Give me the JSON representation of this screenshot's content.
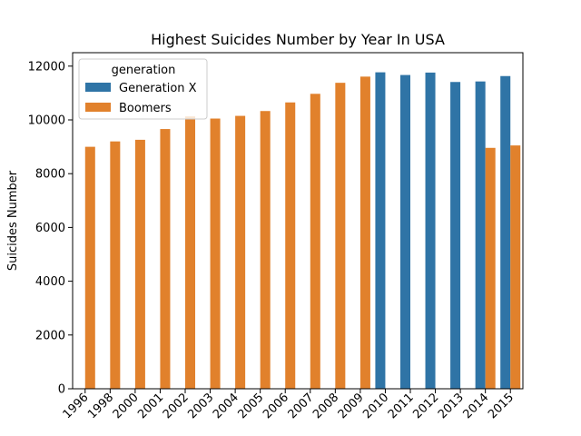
{
  "chart_data": {
    "type": "bar",
    "title": "Highest Suicides Number by Year In USA",
    "xlabel": "",
    "ylabel": "Suicides Number",
    "ylim": [
      0,
      12500
    ],
    "yticks": [
      0,
      2000,
      4000,
      6000,
      8000,
      10000,
      12000
    ],
    "grid": false,
    "legend": {
      "title": "generation",
      "placement": "top-left"
    },
    "categories": [
      "1996",
      "1998",
      "2000",
      "2001",
      "2002",
      "2003",
      "2004",
      "2005",
      "2006",
      "2007",
      "2008",
      "2009",
      "2010",
      "2011",
      "2012",
      "2013",
      "2014",
      "2015"
    ],
    "series": [
      {
        "name": "Generation X",
        "color": "#2f74a6",
        "values": [
          null,
          null,
          null,
          null,
          null,
          null,
          null,
          null,
          null,
          null,
          null,
          null,
          11770,
          11670,
          11760,
          11410,
          11430,
          11630
        ]
      },
      {
        "name": "Boomers",
        "color": "#e1812c",
        "values": [
          9000,
          9200,
          9260,
          9660,
          10130,
          10050,
          10150,
          10330,
          10650,
          10970,
          11380,
          11610,
          null,
          null,
          null,
          null,
          8960,
          9050
        ]
      }
    ]
  }
}
